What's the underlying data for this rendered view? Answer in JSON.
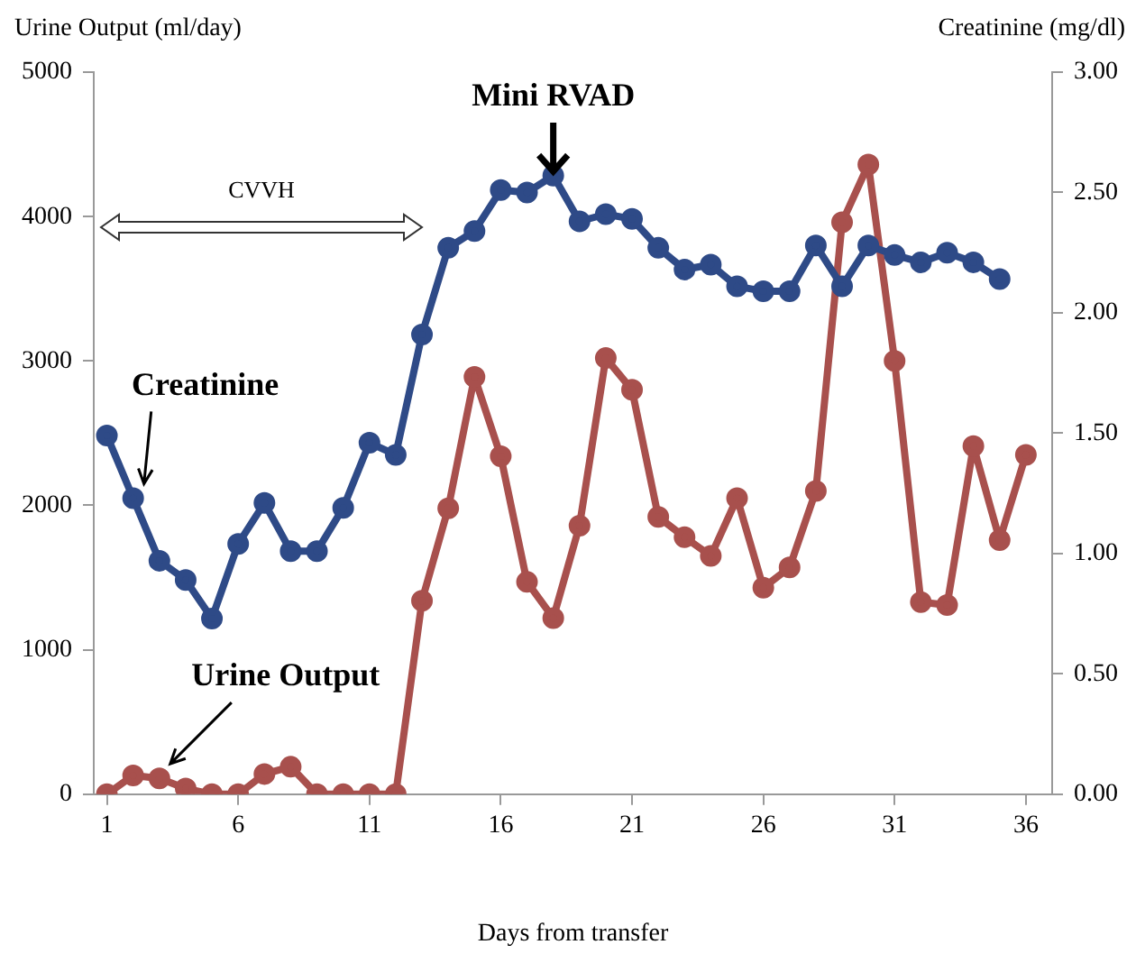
{
  "chart_data": {
    "type": "line",
    "xlabel": "Days from transfer",
    "ylabel": "Urine Output (ml/day)",
    "y2label": "Creatinine (mg/dl)",
    "x": [
      1,
      2,
      3,
      4,
      5,
      6,
      7,
      8,
      9,
      10,
      11,
      12,
      13,
      14,
      15,
      16,
      17,
      18,
      19,
      20,
      21,
      22,
      23,
      24,
      25,
      26,
      27,
      28,
      29,
      30,
      31,
      32,
      33,
      34,
      35,
      36
    ],
    "series": [
      {
        "name": "Creatinine",
        "color": "#2e4a87",
        "axis": "y2",
        "x": [
          1,
          2,
          3,
          4,
          5,
          6,
          7,
          8,
          9,
          10,
          11,
          12,
          13,
          14,
          15,
          16,
          17,
          18,
          19,
          20,
          21,
          22,
          23,
          24,
          25,
          26,
          27,
          28,
          29,
          30,
          31,
          32,
          33,
          34,
          35
        ],
        "values": [
          1.49,
          1.23,
          0.97,
          0.89,
          0.73,
          1.04,
          1.21,
          1.01,
          1.01,
          1.19,
          1.46,
          1.41,
          1.91,
          2.27,
          2.34,
          2.51,
          2.5,
          2.57,
          2.38,
          2.41,
          2.39,
          2.27,
          2.18,
          2.2,
          2.11,
          2.09,
          2.09,
          2.28,
          2.11,
          2.28,
          2.24,
          2.21,
          2.25,
          2.21,
          2.14
        ]
      },
      {
        "name": "Urine Output",
        "color": "#a8504d",
        "axis": "y",
        "values": [
          0,
          130,
          110,
          40,
          0,
          0,
          140,
          190,
          0,
          0,
          0,
          0,
          1340,
          1980,
          2890,
          2340,
          1470,
          1220,
          1860,
          3020,
          2800,
          1920,
          1780,
          1650,
          2050,
          1430,
          1570,
          2100,
          3960,
          4360,
          3000,
          1330,
          1310,
          2410,
          1760,
          2350
        ]
      }
    ],
    "xlim": [
      0.5,
      37
    ],
    "xticks": [
      1,
      6,
      11,
      16,
      21,
      26,
      31,
      36
    ],
    "ylim": [
      0,
      5000
    ],
    "yticks": [
      0,
      1000,
      2000,
      3000,
      4000,
      5000
    ],
    "y2lim": [
      0,
      3
    ],
    "y2ticks": [
      {
        "value": 0,
        "label": "0.00"
      },
      {
        "value": 0.5,
        "label": "0.50"
      },
      {
        "value": 1,
        "label": "1.00"
      },
      {
        "value": 1.5,
        "label": "1.50"
      },
      {
        "value": 2,
        "label": "2.00"
      },
      {
        "value": 2.5,
        "label": "2.50"
      },
      {
        "value": 3,
        "label": "3.00"
      }
    ],
    "annotations": [
      "CVVH",
      {
        "text": "Mini RVAD",
        "x": 18,
        "y": 4250
      }
    ],
    "grid": false,
    "legend": false,
    "marker": "circle",
    "line_style": "solid"
  }
}
